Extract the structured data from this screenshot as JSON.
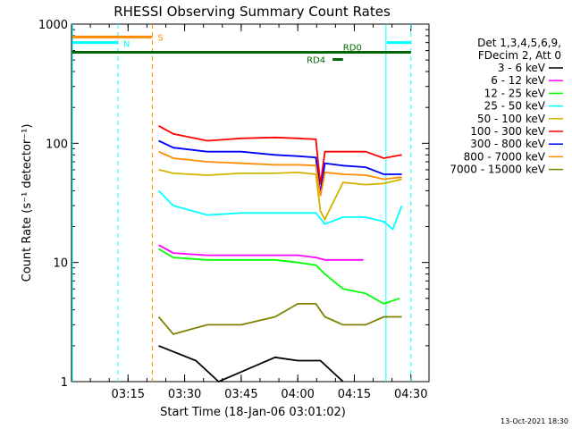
{
  "chart_data": {
    "type": "line",
    "title": "RHESSI Observing Summary Count Rates",
    "xlabel": "Start Time (18-Jan-06 03:01:02)",
    "ylabel": "Count Rate (s⁻¹ detector⁻¹)",
    "y_scale": "log",
    "ylim": [
      1,
      1000
    ],
    "xlim_minutes": [
      3.0,
      4.58
    ],
    "x_ticks": [
      {
        "label": "03:15",
        "hour": 3.25
      },
      {
        "label": "03:30",
        "hour": 3.5
      },
      {
        "label": "03:45",
        "hour": 3.75
      },
      {
        "label": "04:00",
        "hour": 4.0
      },
      {
        "label": "04:15",
        "hour": 4.25
      },
      {
        "label": "04:30",
        "hour": 4.5
      }
    ],
    "y_ticks": [
      {
        "label": "1",
        "value": 1
      },
      {
        "label": "10",
        "value": 10
      },
      {
        "label": "100",
        "value": 100
      },
      {
        "label": "1000",
        "value": 1000
      }
    ],
    "legend_header": [
      "Det 1,3,4,5,6,9,",
      "FDecim 2, Att 0"
    ],
    "legend_placement": "right",
    "series": [
      {
        "name": "3 - 6 keV",
        "color": "#000000",
        "x": [
          3.385,
          3.55,
          3.65,
          3.9,
          4.0,
          4.1,
          4.2
        ],
        "y": [
          2.0,
          1.5,
          1.0,
          1.6,
          1.5,
          1.5,
          1.0
        ]
      },
      {
        "name": "6 - 12 keV",
        "color": "#ff00ff",
        "x": [
          3.385,
          3.45,
          3.6,
          3.75,
          3.9,
          4.0,
          4.08,
          4.12,
          4.2,
          4.29
        ],
        "y": [
          14,
          12,
          11.5,
          11.5,
          11.5,
          11.5,
          11,
          10.5,
          10.5,
          10.5
        ]
      },
      {
        "name": "12 - 25 keV",
        "color": "#00ff00",
        "x": [
          3.385,
          3.45,
          3.6,
          3.75,
          3.9,
          4.0,
          4.08,
          4.12,
          4.2,
          4.3,
          4.38,
          4.45
        ],
        "y": [
          13,
          11,
          10.5,
          10.5,
          10.5,
          10,
          9.5,
          8,
          6,
          5.5,
          4.5,
          5
        ]
      },
      {
        "name": "25 - 50 keV",
        "color": "#00ffff",
        "x": [
          3.385,
          3.45,
          3.6,
          3.75,
          3.9,
          4.0,
          4.08,
          4.12,
          4.2,
          4.3,
          4.38,
          4.42,
          4.46
        ],
        "y": [
          40,
          30,
          25,
          26,
          26,
          26,
          26,
          21,
          24,
          24,
          22,
          19,
          30
        ]
      },
      {
        "name": "50 - 100 keV",
        "color": "#d2b400",
        "x": [
          3.385,
          3.45,
          3.6,
          3.75,
          3.9,
          4.0,
          4.08,
          4.1,
          4.12,
          4.2,
          4.3,
          4.38,
          4.46
        ],
        "y": [
          60,
          56,
          54,
          56,
          56,
          57,
          55,
          27,
          23,
          47,
          45,
          46,
          50
        ]
      },
      {
        "name": "100 - 300 keV",
        "color": "#ff0000",
        "x": [
          3.385,
          3.45,
          3.6,
          3.75,
          3.9,
          4.0,
          4.08,
          4.1,
          4.12,
          4.2,
          4.3,
          4.38,
          4.46
        ],
        "y": [
          140,
          120,
          105,
          110,
          112,
          110,
          108,
          45,
          85,
          85,
          85,
          75,
          80
        ]
      },
      {
        "name": "300 - 800 keV",
        "color": "#0000ff",
        "x": [
          3.385,
          3.45,
          3.6,
          3.75,
          3.9,
          4.0,
          4.08,
          4.1,
          4.12,
          4.2,
          4.3,
          4.38,
          4.46
        ],
        "y": [
          105,
          92,
          85,
          85,
          80,
          78,
          76,
          38,
          68,
          65,
          63,
          55,
          55
        ]
      },
      {
        "name": "800 - 7000 keV",
        "color": "#ff8c00",
        "x": [
          3.385,
          3.45,
          3.6,
          3.75,
          3.9,
          4.0,
          4.08,
          4.1,
          4.12,
          4.2,
          4.3,
          4.38,
          4.46
        ],
        "y": [
          85,
          75,
          70,
          68,
          66,
          66,
          65,
          36,
          57,
          55,
          54,
          50,
          52
        ]
      },
      {
        "name": "7000 - 15000 keV",
        "color": "#808000",
        "x": [
          3.385,
          3.45,
          3.6,
          3.75,
          3.9,
          4.0,
          4.08,
          4.12,
          4.2,
          4.3,
          4.38,
          4.46
        ],
        "y": [
          3.5,
          2.5,
          3,
          3,
          3.5,
          4.5,
          4.5,
          3.5,
          3,
          3,
          3.5,
          3.5
        ]
      }
    ],
    "flags": [
      {
        "label": "N",
        "color": "#00ffff",
        "x0": 3.0,
        "x1": 3.205,
        "level": 700
      },
      {
        "label": "",
        "color": "#00ffff",
        "x0": 4.39,
        "x1": 4.5,
        "level": 700
      },
      {
        "label": "S",
        "color": "#ff8c00",
        "x0": 3.0,
        "x1": 3.357,
        "level": 780
      },
      {
        "label": "RD0",
        "color": "#006400",
        "x0": 3.0,
        "x1": 4.5,
        "level": 580
      },
      {
        "label": "RD4",
        "color": "#006400",
        "x0": 4.15,
        "x1": 4.2,
        "level": 505
      }
    ],
    "vlines": [
      {
        "x": 3.0,
        "color": "#00ffff",
        "style": "solid"
      },
      {
        "x": 3.205,
        "color": "#00ffff",
        "style": "dashed"
      },
      {
        "x": 3.357,
        "color": "#ff8c00",
        "style": "dashed"
      },
      {
        "x": 4.39,
        "color": "#00ffff",
        "style": "solid"
      },
      {
        "x": 4.5,
        "color": "#00ffff",
        "style": "dashed"
      }
    ]
  },
  "footer_timestamp": "13-Oct-2021 18:30"
}
